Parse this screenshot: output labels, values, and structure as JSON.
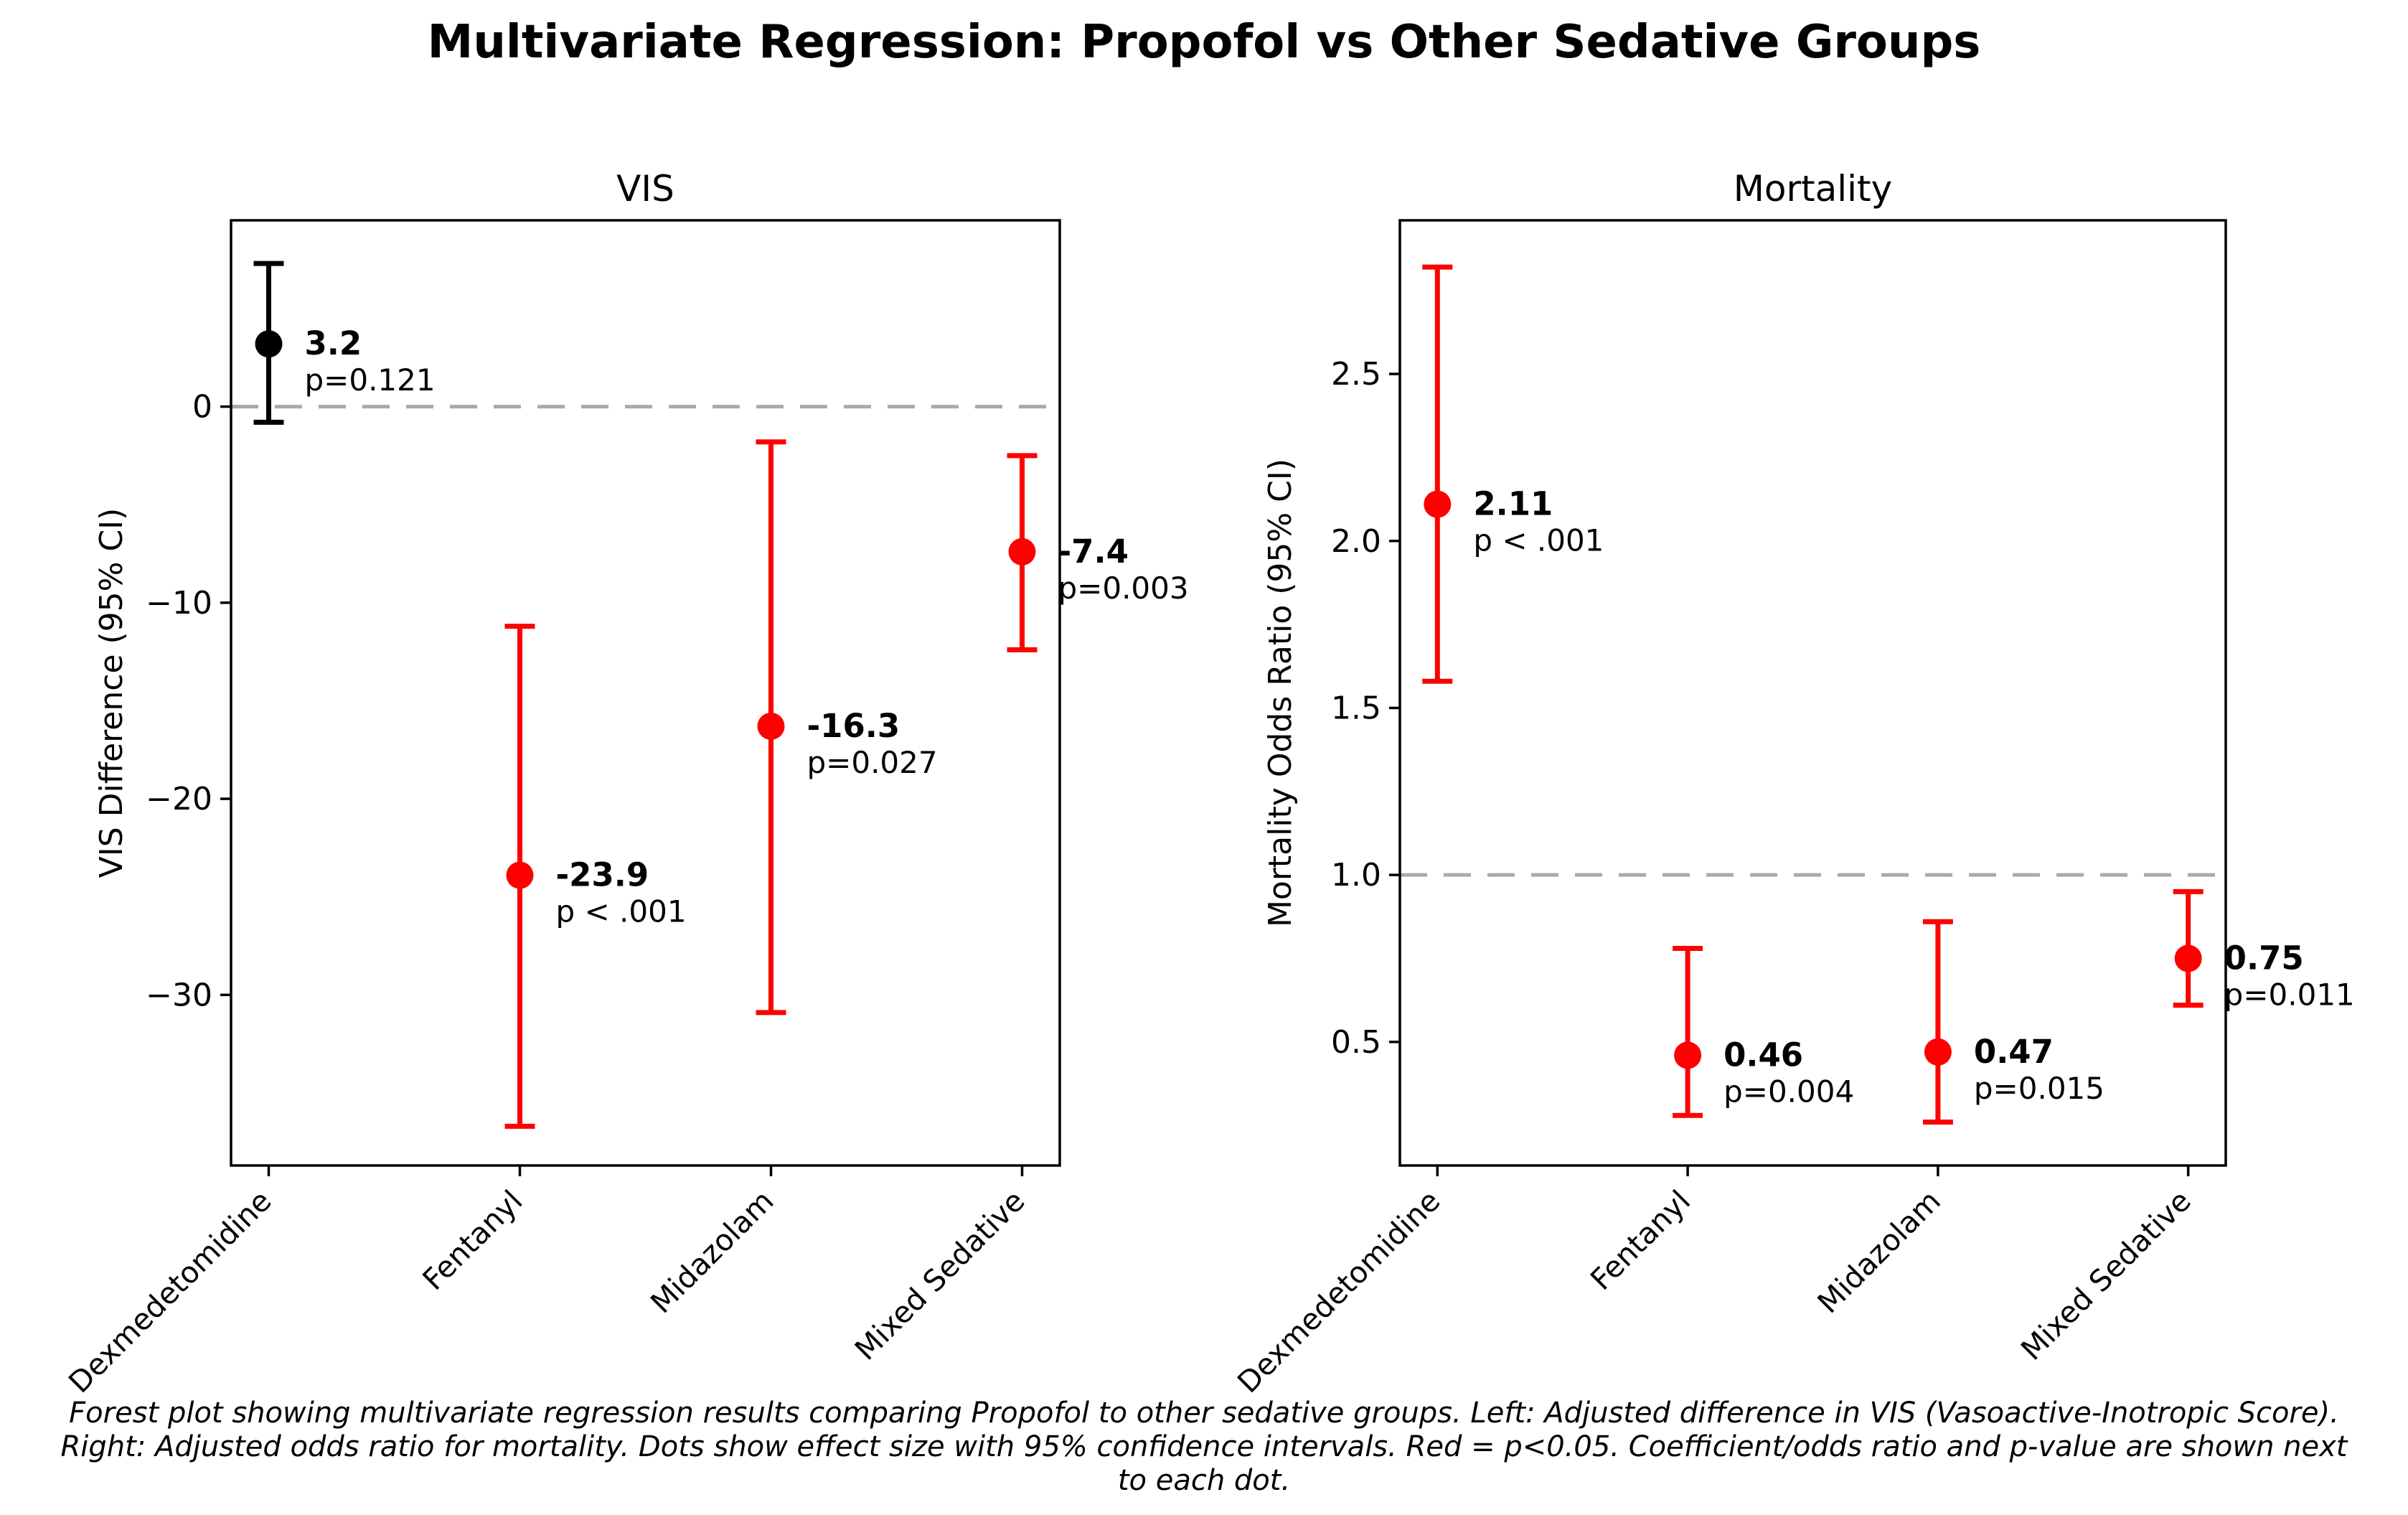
{
  "figure": {
    "title": "Multivariate Regression: Propofol vs Other Sedative Groups",
    "caption_lines": [
      "Forest plot showing multivariate regression results comparing Propofol to other sedative groups. Left: Adjusted difference in VIS (Vasoactive-Inotropic Score).",
      "Right: Adjusted odds ratio for mortality. Dots show effect size with 95% confidence intervals. Red = p<0.05. Coefficient/odds ratio and p-value are shown next",
      "to each dot."
    ]
  },
  "colors": {
    "significant": "#ff0000",
    "nonsignificant": "#000000",
    "refline": "#aaaaaa",
    "axes": "#000000"
  },
  "chart_data": [
    {
      "type": "scatter",
      "subtype": "forest-errorbar",
      "title": "VIS",
      "ylabel": "VIS Difference (95% CI)",
      "categories": [
        "Dexmedetomidine",
        "Fentanyl",
        "Midazolam",
        "Mixed Sedative"
      ],
      "refline": 0,
      "ylim": [
        -38.7,
        9.5
      ],
      "grid": false,
      "yticks": [
        {
          "value": 0,
          "label": "0"
        },
        {
          "value": -10,
          "label": "−10"
        },
        {
          "value": -20,
          "label": "−20"
        },
        {
          "value": -30,
          "label": "−30"
        }
      ],
      "points": [
        {
          "category": "Dexmedetomidine",
          "value": 3.2,
          "label": "3.2",
          "ci_low": -0.8,
          "ci_high": 7.3,
          "p": "p=0.121",
          "significant": false
        },
        {
          "category": "Fentanyl",
          "value": -23.9,
          "label": "-23.9",
          "ci_low": -36.7,
          "ci_high": -11.2,
          "p": "p < .001",
          "significant": true
        },
        {
          "category": "Midazolam",
          "value": -16.3,
          "label": "-16.3",
          "ci_low": -30.9,
          "ci_high": -1.8,
          "p": "p=0.027",
          "significant": true
        },
        {
          "category": "Mixed Sedative",
          "value": -7.4,
          "label": "-7.4",
          "ci_low": -12.4,
          "ci_high": -2.5,
          "p": "p=0.003",
          "significant": true
        }
      ]
    },
    {
      "type": "scatter",
      "subtype": "forest-errorbar",
      "title": "Mortality",
      "ylabel": "Mortality Odds Ratio (95% CI)",
      "categories": [
        "Dexmedetomidine",
        "Fentanyl",
        "Midazolam",
        "Mixed Sedative"
      ],
      "refline": 1.0,
      "ylim": [
        0.13,
        2.96
      ],
      "grid": false,
      "yticks": [
        {
          "value": 0.5,
          "label": "0.5"
        },
        {
          "value": 1.0,
          "label": "1.0"
        },
        {
          "value": 1.5,
          "label": "1.5"
        },
        {
          "value": 2.0,
          "label": "2.0"
        },
        {
          "value": 2.5,
          "label": "2.5"
        }
      ],
      "points": [
        {
          "category": "Dexmedetomidine",
          "value": 2.11,
          "label": "2.11",
          "ci_low": 1.58,
          "ci_high": 2.82,
          "p": "p < .001",
          "significant": true
        },
        {
          "category": "Fentanyl",
          "value": 0.46,
          "label": "0.46",
          "ci_low": 0.28,
          "ci_high": 0.78,
          "p": "p=0.004",
          "significant": true
        },
        {
          "category": "Midazolam",
          "value": 0.47,
          "label": "0.47",
          "ci_low": 0.26,
          "ci_high": 0.86,
          "p": "p=0.015",
          "significant": true
        },
        {
          "category": "Mixed Sedative",
          "value": 0.75,
          "label": "0.75",
          "ci_low": 0.61,
          "ci_high": 0.95,
          "p": "p=0.011",
          "significant": true
        }
      ]
    }
  ]
}
